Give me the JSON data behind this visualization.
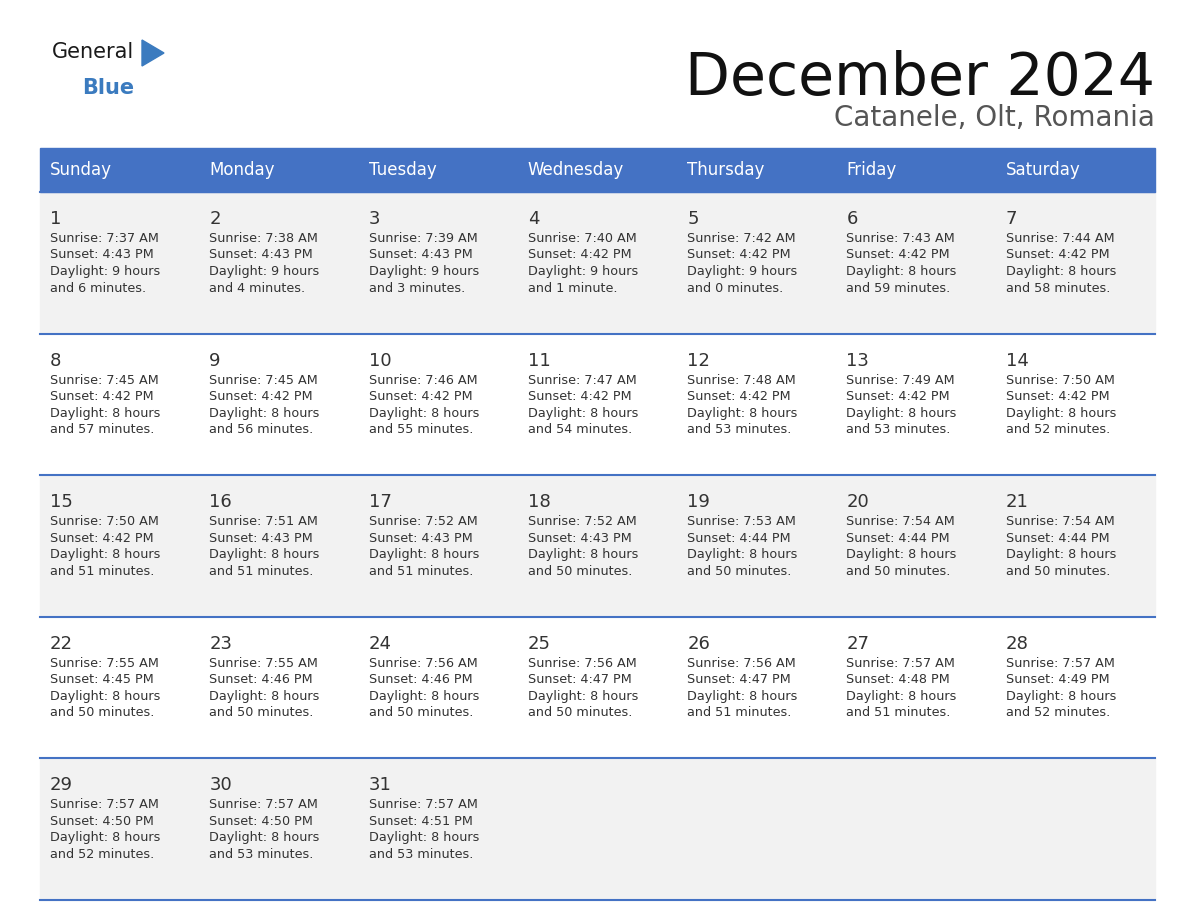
{
  "title": "December 2024",
  "subtitle": "Catanele, Olt, Romania",
  "header_bg": "#4472C4",
  "header_text_color": "#FFFFFF",
  "days_of_week": [
    "Sunday",
    "Monday",
    "Tuesday",
    "Wednesday",
    "Thursday",
    "Friday",
    "Saturday"
  ],
  "weeks": [
    [
      {
        "day": "1",
        "sunrise": "7:37 AM",
        "sunset": "4:43 PM",
        "daylight_h": "9 hours",
        "daylight_m": "and 6 minutes."
      },
      {
        "day": "2",
        "sunrise": "7:38 AM",
        "sunset": "4:43 PM",
        "daylight_h": "9 hours",
        "daylight_m": "and 4 minutes."
      },
      {
        "day": "3",
        "sunrise": "7:39 AM",
        "sunset": "4:43 PM",
        "daylight_h": "9 hours",
        "daylight_m": "and 3 minutes."
      },
      {
        "day": "4",
        "sunrise": "7:40 AM",
        "sunset": "4:42 PM",
        "daylight_h": "9 hours",
        "daylight_m": "and 1 minute."
      },
      {
        "day": "5",
        "sunrise": "7:42 AM",
        "sunset": "4:42 PM",
        "daylight_h": "9 hours",
        "daylight_m": "and 0 minutes."
      },
      {
        "day": "6",
        "sunrise": "7:43 AM",
        "sunset": "4:42 PM",
        "daylight_h": "8 hours",
        "daylight_m": "and 59 minutes."
      },
      {
        "day": "7",
        "sunrise": "7:44 AM",
        "sunset": "4:42 PM",
        "daylight_h": "8 hours",
        "daylight_m": "and 58 minutes."
      }
    ],
    [
      {
        "day": "8",
        "sunrise": "7:45 AM",
        "sunset": "4:42 PM",
        "daylight_h": "8 hours",
        "daylight_m": "and 57 minutes."
      },
      {
        "day": "9",
        "sunrise": "7:45 AM",
        "sunset": "4:42 PM",
        "daylight_h": "8 hours",
        "daylight_m": "and 56 minutes."
      },
      {
        "day": "10",
        "sunrise": "7:46 AM",
        "sunset": "4:42 PM",
        "daylight_h": "8 hours",
        "daylight_m": "and 55 minutes."
      },
      {
        "day": "11",
        "sunrise": "7:47 AM",
        "sunset": "4:42 PM",
        "daylight_h": "8 hours",
        "daylight_m": "and 54 minutes."
      },
      {
        "day": "12",
        "sunrise": "7:48 AM",
        "sunset": "4:42 PM",
        "daylight_h": "8 hours",
        "daylight_m": "and 53 minutes."
      },
      {
        "day": "13",
        "sunrise": "7:49 AM",
        "sunset": "4:42 PM",
        "daylight_h": "8 hours",
        "daylight_m": "and 53 minutes."
      },
      {
        "day": "14",
        "sunrise": "7:50 AM",
        "sunset": "4:42 PM",
        "daylight_h": "8 hours",
        "daylight_m": "and 52 minutes."
      }
    ],
    [
      {
        "day": "15",
        "sunrise": "7:50 AM",
        "sunset": "4:42 PM",
        "daylight_h": "8 hours",
        "daylight_m": "and 51 minutes."
      },
      {
        "day": "16",
        "sunrise": "7:51 AM",
        "sunset": "4:43 PM",
        "daylight_h": "8 hours",
        "daylight_m": "and 51 minutes."
      },
      {
        "day": "17",
        "sunrise": "7:52 AM",
        "sunset": "4:43 PM",
        "daylight_h": "8 hours",
        "daylight_m": "and 51 minutes."
      },
      {
        "day": "18",
        "sunrise": "7:52 AM",
        "sunset": "4:43 PM",
        "daylight_h": "8 hours",
        "daylight_m": "and 50 minutes."
      },
      {
        "day": "19",
        "sunrise": "7:53 AM",
        "sunset": "4:44 PM",
        "daylight_h": "8 hours",
        "daylight_m": "and 50 minutes."
      },
      {
        "day": "20",
        "sunrise": "7:54 AM",
        "sunset": "4:44 PM",
        "daylight_h": "8 hours",
        "daylight_m": "and 50 minutes."
      },
      {
        "day": "21",
        "sunrise": "7:54 AM",
        "sunset": "4:44 PM",
        "daylight_h": "8 hours",
        "daylight_m": "and 50 minutes."
      }
    ],
    [
      {
        "day": "22",
        "sunrise": "7:55 AM",
        "sunset": "4:45 PM",
        "daylight_h": "8 hours",
        "daylight_m": "and 50 minutes."
      },
      {
        "day": "23",
        "sunrise": "7:55 AM",
        "sunset": "4:46 PM",
        "daylight_h": "8 hours",
        "daylight_m": "and 50 minutes."
      },
      {
        "day": "24",
        "sunrise": "7:56 AM",
        "sunset": "4:46 PM",
        "daylight_h": "8 hours",
        "daylight_m": "and 50 minutes."
      },
      {
        "day": "25",
        "sunrise": "7:56 AM",
        "sunset": "4:47 PM",
        "daylight_h": "8 hours",
        "daylight_m": "and 50 minutes."
      },
      {
        "day": "26",
        "sunrise": "7:56 AM",
        "sunset": "4:47 PM",
        "daylight_h": "8 hours",
        "daylight_m": "and 51 minutes."
      },
      {
        "day": "27",
        "sunrise": "7:57 AM",
        "sunset": "4:48 PM",
        "daylight_h": "8 hours",
        "daylight_m": "and 51 minutes."
      },
      {
        "day": "28",
        "sunrise": "7:57 AM",
        "sunset": "4:49 PM",
        "daylight_h": "8 hours",
        "daylight_m": "and 52 minutes."
      }
    ],
    [
      {
        "day": "29",
        "sunrise": "7:57 AM",
        "sunset": "4:50 PM",
        "daylight_h": "8 hours",
        "daylight_m": "and 52 minutes."
      },
      {
        "day": "30",
        "sunrise": "7:57 AM",
        "sunset": "4:50 PM",
        "daylight_h": "8 hours",
        "daylight_m": "and 53 minutes."
      },
      {
        "day": "31",
        "sunrise": "7:57 AM",
        "sunset": "4:51 PM",
        "daylight_h": "8 hours",
        "daylight_m": "and 53 minutes."
      },
      null,
      null,
      null,
      null
    ]
  ],
  "bg_color": "#FFFFFF",
  "row_bg_colors": [
    "#F2F2F2",
    "#FFFFFF",
    "#F2F2F2",
    "#FFFFFF",
    "#F2F2F2"
  ],
  "text_color": "#333333",
  "info_text_color": "#333333",
  "divider_color": "#4472C4",
  "logo_general_color": "#1a1a1a",
  "logo_blue_color": "#3B7BBF"
}
